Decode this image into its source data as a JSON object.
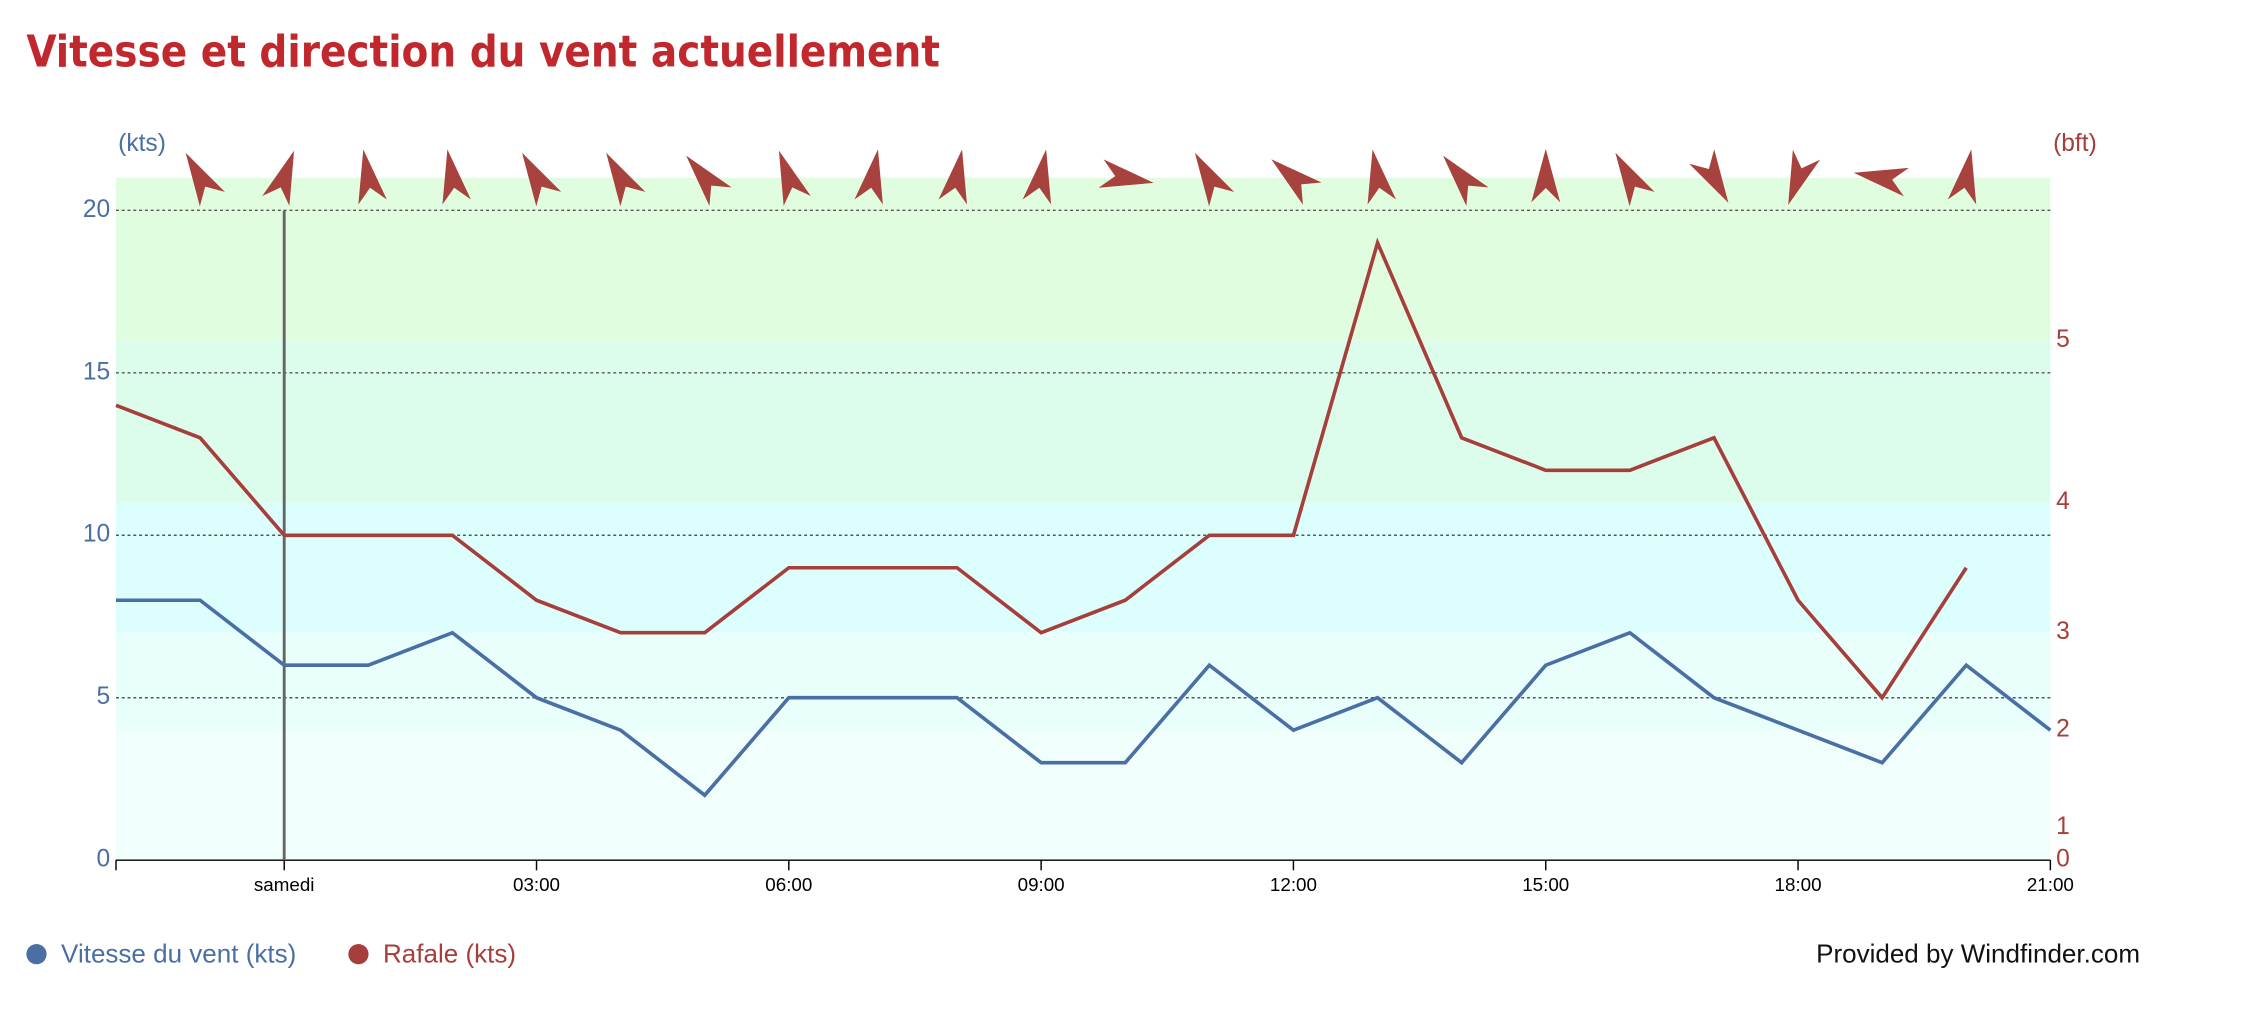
{
  "chart_data": {
    "type": "line",
    "title": "Vitesse et direction du vent actuellement",
    "y_label": "(kts)",
    "y2_label": "(bft)",
    "categories": [
      null,
      null,
      "samedi",
      null,
      null,
      "03:00",
      null,
      null,
      "06:00",
      null,
      null,
      "09:00",
      null,
      null,
      "12:00",
      null,
      null,
      "15:00",
      null,
      null,
      "18:00",
      null,
      null,
      "21:00"
    ],
    "series": [
      {
        "name": "Vitesse du vent (kts)",
        "color": "#4a6fa5",
        "values": [
          8,
          8,
          6,
          6,
          7,
          5,
          4,
          2,
          5,
          5,
          5,
          3,
          3,
          6,
          4,
          5,
          3,
          6,
          7,
          5,
          4,
          3,
          6,
          4
        ]
      },
      {
        "name": "Rafale (kts)",
        "color": "#a63f3b",
        "values": [
          14,
          13,
          10,
          10,
          10,
          8,
          7,
          7,
          9,
          9,
          9,
          7,
          8,
          10,
          10,
          19,
          13,
          12,
          12,
          13,
          8,
          5,
          9,
          null
        ]
      }
    ],
    "wind_direction": [
      null,
      330,
      20,
      350,
      350,
      330,
      330,
      320,
      340,
      10,
      10,
      10,
      100,
      330,
      310,
      350,
      320,
      0,
      330,
      150,
      200,
      280,
      10,
      null
    ],
    "ylim": [
      0,
      21
    ],
    "yticks": [
      0,
      5,
      10,
      15,
      20
    ],
    "y2ticks": [
      0,
      1,
      {
        "value": 4,
        "label": "2"
      },
      {
        "value": 7,
        "label": "3"
      },
      {
        "value": 11,
        "label": "4"
      },
      {
        "value": 16,
        "label": "5"
      }
    ],
    "grid": true,
    "footer": "Provided by Windfinder.com"
  }
}
